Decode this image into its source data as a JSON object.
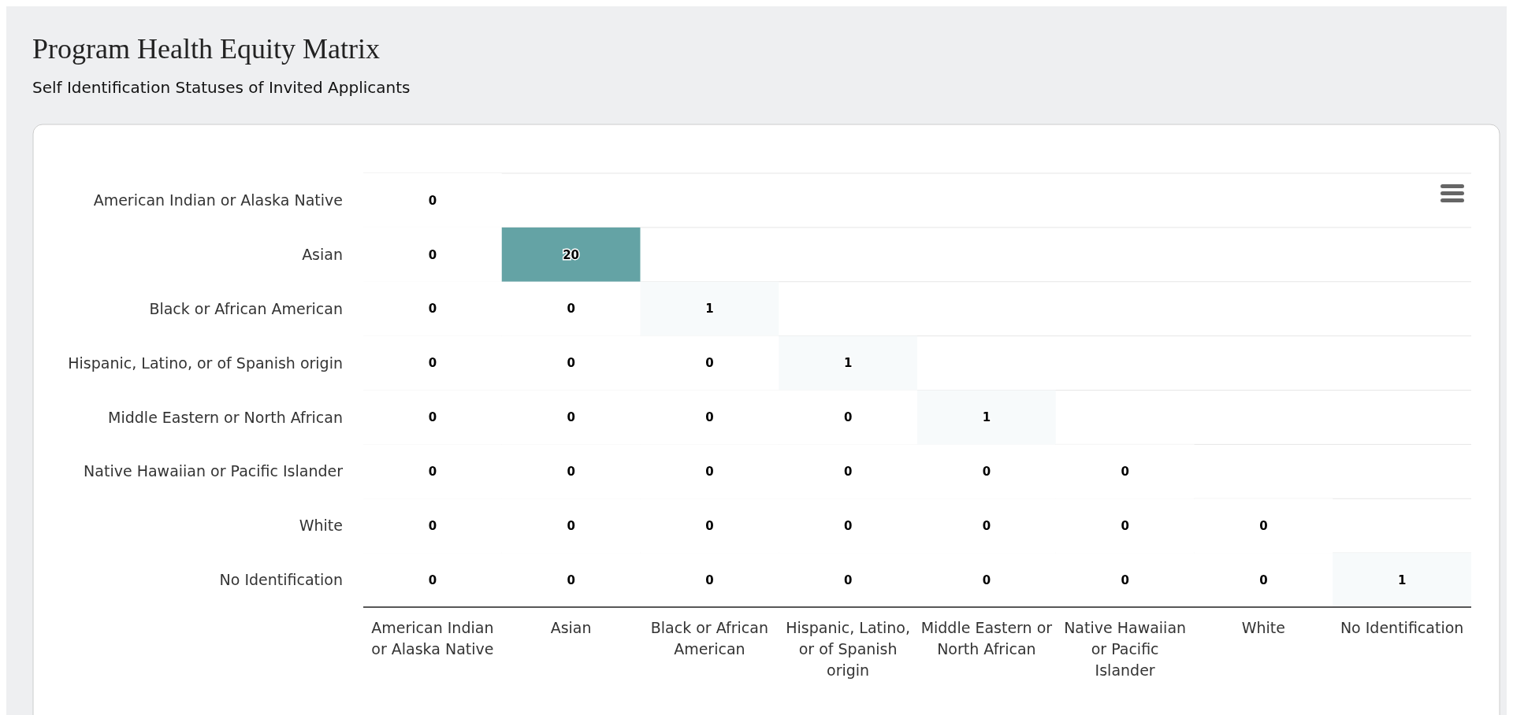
{
  "chart_data": {
    "type": "heatmap",
    "title": "Program Health Equity Matrix",
    "subtitle": "Self Identification Statuses of Invited Applicants",
    "categories": [
      "American Indian or Alaska Native",
      "Asian",
      "Black or African American",
      "Hispanic, Latino, or of Spanish origin",
      "Middle Eastern or North African",
      "Native Hawaiian or Pacific Islander",
      "White",
      "No Identification"
    ],
    "y_categories": [
      "American Indian or Alaska Native",
      "Asian",
      "Black or African American",
      "Hispanic, Latino, or of Spanish origin",
      "Middle Eastern or North African",
      "Native Hawaiian or Pacific Islander",
      "White",
      "No Identification"
    ],
    "cells": [
      [
        0,
        null,
        null,
        null,
        null,
        null,
        null,
        null
      ],
      [
        0,
        20,
        null,
        null,
        null,
        null,
        null,
        null
      ],
      [
        0,
        0,
        1,
        null,
        null,
        null,
        null,
        null
      ],
      [
        0,
        0,
        0,
        1,
        null,
        null,
        null,
        null
      ],
      [
        0,
        0,
        0,
        0,
        1,
        null,
        null,
        null
      ],
      [
        0,
        0,
        0,
        0,
        0,
        0,
        null,
        null
      ],
      [
        0,
        0,
        0,
        0,
        0,
        0,
        0,
        null
      ],
      [
        0,
        0,
        0,
        0,
        0,
        0,
        0,
        1
      ]
    ],
    "colors": [
      "#ffffff",
      "#64a3a5"
    ],
    "data_labels": true,
    "grid": "y"
  }
}
